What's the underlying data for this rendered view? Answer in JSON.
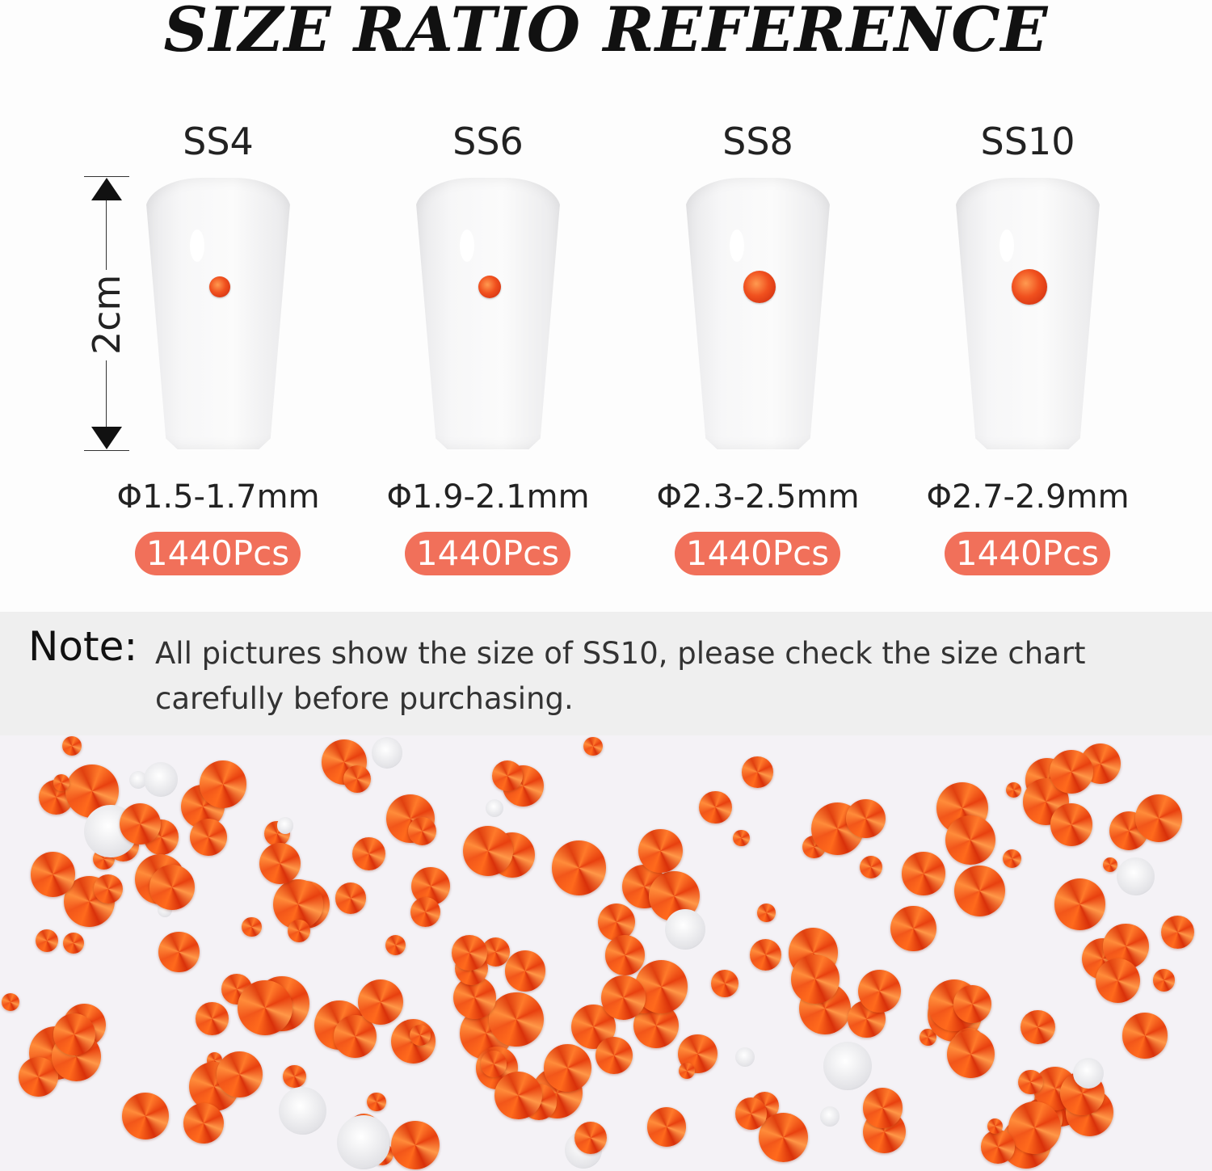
{
  "title": "SIZE RATIO REFERENCE",
  "ruler": {
    "label": "2cm"
  },
  "sizes": [
    {
      "label": "SS4",
      "diameter": "Φ1.5-1.7mm",
      "count": "1440Pcs"
    },
    {
      "label": "SS6",
      "diameter": "Φ1.9-2.1mm",
      "count": "1440Pcs"
    },
    {
      "label": "SS8",
      "diameter": "Φ2.3-2.5mm",
      "count": "1440Pcs"
    },
    {
      "label": "SS10",
      "diameter": "Φ2.7-2.9mm",
      "count": "1440Pcs"
    }
  ],
  "note": {
    "heading": "Note:",
    "text": "All pictures show the size of SS10, please check the size chart carefully before purchasing."
  },
  "colors": {
    "badge": "#f1705a",
    "gem": "#f0501e",
    "note_band": "#efefef"
  }
}
